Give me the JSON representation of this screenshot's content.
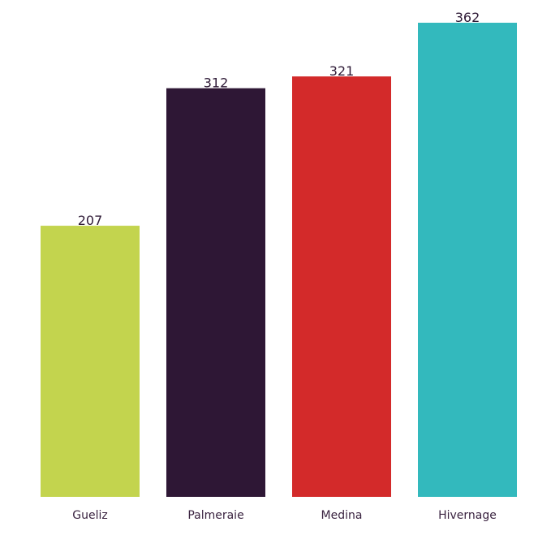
{
  "chart_data": {
    "type": "bar",
    "title": "",
    "xlabel": "",
    "ylabel": "",
    "categories": [
      "Gueliz",
      "Palmeraie",
      "Medina",
      "Hivernage"
    ],
    "values": [
      207,
      312,
      321,
      362
    ],
    "colors": [
      "#c3d44e",
      "#2e1735",
      "#d32a2a",
      "#33b9bd"
    ],
    "ylim": [
      0,
      362
    ],
    "grid": false,
    "legend": "none",
    "show_value_labels": true
  }
}
